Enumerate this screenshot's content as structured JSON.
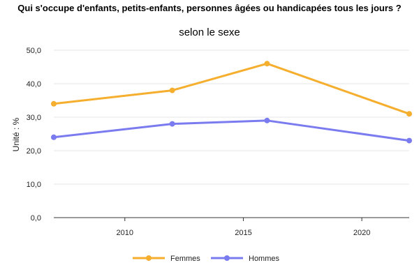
{
  "chart_data": {
    "type": "line",
    "title": "Qui s'occupe d'enfants, petits-enfants, personnes âgées ou handicapées tous les jours ?",
    "subtitle": "selon le sexe",
    "xlabel": "",
    "ylabel": "Unité : %",
    "x": [
      2007,
      2012,
      2016,
      2022
    ],
    "xlim": [
      2007,
      2022
    ],
    "ylim": [
      0,
      50
    ],
    "x_ticks": [
      2010,
      2015,
      2020
    ],
    "x_tick_labels": [
      "2010",
      "2015",
      "2020"
    ],
    "y_ticks": [
      0,
      10,
      20,
      30,
      40,
      50
    ],
    "y_tick_labels": [
      "0,0",
      "10,0",
      "20,0",
      "30,0",
      "40,0",
      "50,0"
    ],
    "grid": true,
    "legend_position": "bottom",
    "series": [
      {
        "name": "Femmes",
        "color": "#F5AE2E",
        "values": [
          34,
          38,
          46,
          31
        ]
      },
      {
        "name": "Hommes",
        "color": "#7B7BF0",
        "values": [
          24,
          28,
          29,
          23
        ]
      }
    ]
  }
}
